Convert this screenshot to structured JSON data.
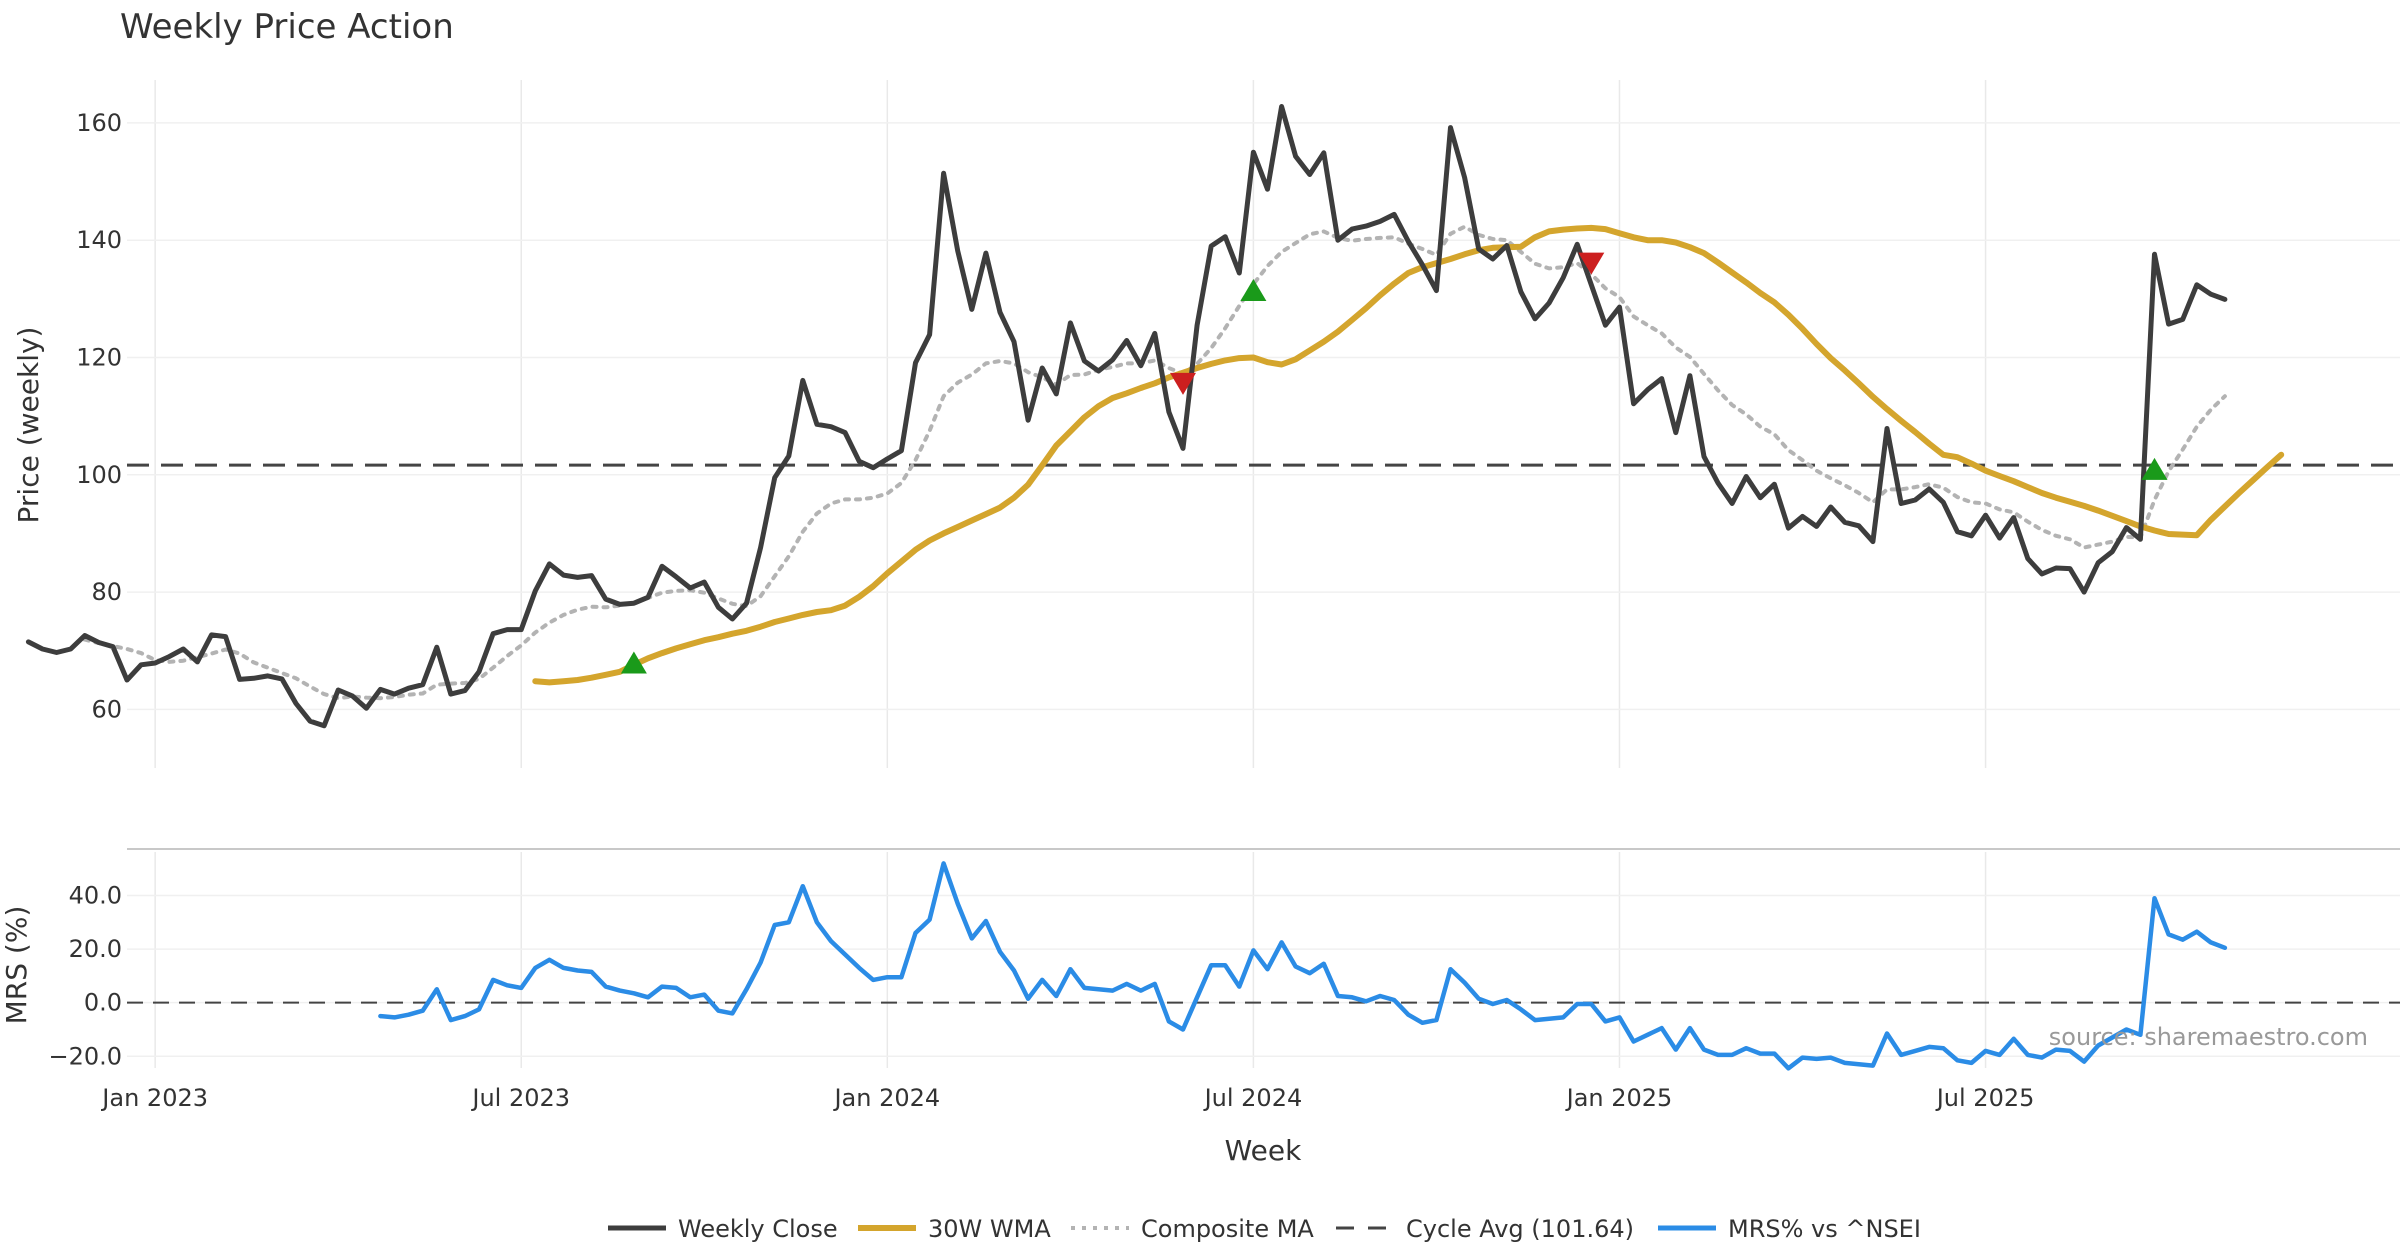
{
  "chart_data": {
    "type": "line",
    "title": "Weekly Price Action",
    "xlabel": "Week",
    "x_ticks": [
      "Jan 2023",
      "Jul 2023",
      "Jan 2024",
      "Jul 2024",
      "Jan 2025",
      "Jul 2025"
    ],
    "x_tick_weeks": [
      2,
      28,
      54,
      80,
      106,
      132
    ],
    "price_panel": {
      "ylabel": "Price (weekly)",
      "ylim": [
        50,
        168
      ],
      "yticks": [
        60,
        80,
        100,
        120,
        140,
        160
      ],
      "cycle_avg": 101.64
    },
    "mrs_panel": {
      "ylabel": "MRS (%)",
      "ylim": [
        -27,
        57
      ],
      "yticks": [
        40,
        20,
        0,
        -20
      ],
      "ytick_labels": [
        "40.0",
        "20.0",
        "0.0",
        "−20.0"
      ]
    },
    "series": [
      {
        "name": "Weekly Close",
        "color": "#3d3d3d",
        "start": -7,
        "values": [
          71.5,
          70.3,
          69.7,
          70.3,
          72.6,
          71.4,
          70.7,
          65.0,
          67.6,
          67.9,
          69.0,
          70.3,
          68.1,
          72.7,
          72.4,
          65.1,
          65.3,
          65.7,
          65.2,
          61.0,
          58.0,
          57.2,
          63.3,
          62.3,
          60.2,
          63.4,
          62.6,
          63.6,
          64.2,
          70.6,
          62.6,
          63.2,
          66.4,
          72.9,
          73.6,
          73.6,
          80.2,
          84.8,
          82.9,
          82.5,
          82.8,
          78.8,
          77.9,
          78.1,
          79.1,
          84.4,
          82.6,
          80.7,
          81.7,
          77.4,
          75.4,
          78.1,
          87.6,
          99.5,
          103.2,
          116.1,
          108.6,
          108.2,
          107.2,
          102.3,
          101.2,
          102.7,
          104.1,
          119.1,
          123.9,
          151.4,
          138.2,
          128.2,
          137.8,
          127.7,
          122.7,
          109.3,
          118.2,
          113.8,
          125.9,
          119.4,
          117.7,
          119.6,
          122.9,
          118.6,
          124.1,
          110.7,
          104.5,
          125.5,
          139.0,
          140.6,
          134.4,
          155.0,
          148.7,
          162.8,
          154.3,
          151.2,
          154.9,
          140.0,
          141.9,
          142.4,
          143.2,
          144.4,
          139.8,
          135.8,
          131.4,
          159.2,
          150.7,
          138.5,
          136.8,
          139.1,
          131.2,
          126.6,
          129.3,
          133.6,
          139.3,
          132.4,
          125.5,
          128.6,
          112.1,
          114.5,
          116.4,
          107.2,
          116.9,
          103.1,
          98.6,
          95.1,
          99.7,
          96.1,
          98.4,
          90.9,
          92.9,
          91.2,
          94.5,
          91.9,
          91.3,
          88.6,
          107.9,
          95.1,
          95.7,
          97.6,
          95.3,
          90.3,
          89.6,
          93.1,
          89.2,
          92.7,
          85.7,
          83.1,
          84.1,
          84.0,
          80.0,
          85.0,
          86.9,
          91.0,
          89.0,
          137.6,
          125.7,
          126.5,
          132.4,
          130.8,
          129.9
        ]
      },
      {
        "name": "30W WMA",
        "color": "#d4a52d",
        "start": 29,
        "values": [
          64.8,
          64.6,
          64.8,
          65.0,
          65.4,
          65.9,
          66.4,
          67.6,
          68.7,
          69.6,
          70.4,
          71.1,
          71.8,
          72.3,
          72.9,
          73.4,
          74.1,
          74.9,
          75.5,
          76.1,
          76.6,
          76.9,
          77.7,
          79.2,
          81.0,
          83.2,
          85.2,
          87.2,
          88.8,
          90.0,
          91.1,
          92.2,
          93.3,
          94.4,
          96.1,
          98.3,
          101.6,
          105.0,
          107.4,
          109.8,
          111.7,
          113.1,
          113.9,
          114.8,
          115.6,
          116.6,
          117.4,
          118.2,
          118.9,
          119.5,
          119.9,
          120.0,
          119.2,
          118.8,
          119.7,
          121.2,
          122.7,
          124.4,
          126.4,
          128.4,
          130.6,
          132.6,
          134.4,
          135.4,
          136.1,
          136.8,
          137.6,
          138.3,
          138.7,
          138.8,
          138.9,
          140.5,
          141.5,
          141.8,
          142.0,
          142.1,
          141.9,
          141.2,
          140.5,
          140.0,
          140.0,
          139.6,
          138.8,
          137.8,
          136.2,
          134.5,
          132.8,
          131.0,
          129.4,
          127.3,
          124.9,
          122.3,
          119.9,
          117.8,
          115.6,
          113.3,
          111.2,
          109.2,
          107.3,
          105.3,
          103.4,
          103.0,
          101.9,
          100.7,
          99.8,
          98.9,
          97.9,
          96.9,
          96.1,
          95.4,
          94.7,
          93.9,
          93.0,
          92.1,
          91.2,
          90.5,
          89.9,
          89.8,
          89.7,
          92.3,
          94.6,
          96.9,
          99.1,
          101.3,
          103.4
        ]
      },
      {
        "name": "Composite MA",
        "color": "#b3b3b3",
        "start": -7,
        "values": [
          null,
          null,
          null,
          null,
          71.9,
          71.3,
          70.8,
          70.3,
          69.6,
          68.4,
          68.1,
          68.3,
          68.9,
          69.5,
          70.2,
          69.5,
          68.0,
          67.1,
          66.2,
          65.3,
          63.9,
          62.6,
          61.9,
          62.2,
          62.0,
          61.9,
          62.1,
          62.5,
          62.7,
          64.2,
          64.4,
          64.5,
          65.2,
          67.1,
          69.1,
          70.9,
          73.1,
          74.8,
          76.1,
          77.0,
          77.5,
          77.4,
          77.7,
          78.2,
          79.0,
          79.9,
          80.2,
          80.3,
          79.9,
          78.9,
          78.0,
          77.6,
          79.3,
          82.7,
          86.1,
          90.3,
          93.4,
          95.1,
          95.8,
          95.8,
          96.1,
          96.8,
          98.6,
          102.5,
          107.5,
          113.4,
          115.7,
          117.1,
          119.0,
          119.4,
          119.0,
          117.5,
          116.6,
          115.4,
          117.0,
          117.1,
          117.9,
          118.4,
          119.0,
          119.0,
          119.5,
          118.2,
          117.2,
          118.9,
          121.6,
          125.0,
          128.8,
          132.5,
          135.6,
          138.0,
          139.5,
          141.0,
          141.5,
          140.4,
          139.9,
          140.2,
          140.4,
          140.5,
          139.4,
          138.5,
          137.5,
          141.1,
          142.3,
          140.9,
          140.2,
          140.0,
          138.0,
          136.0,
          135.2,
          135.4,
          136.1,
          134.2,
          131.8,
          130.3,
          127.0,
          125.5,
          124.1,
          121.7,
          120.1,
          117.2,
          114.4,
          111.9,
          110.3,
          108.2,
          106.9,
          104.2,
          102.5,
          100.7,
          99.4,
          98.2,
          96.9,
          95.3,
          97.5,
          97.5,
          97.9,
          98.4,
          97.8,
          96.2,
          95.3,
          95.1,
          94.1,
          93.6,
          92.0,
          90.6,
          89.6,
          89.0,
          87.6,
          88.1,
          88.6,
          89.4,
          89.3,
          95.7,
          100.6,
          104.3,
          108.2,
          111.1,
          113.4
        ]
      },
      {
        "name": "Cycle Avg (101.64)",
        "color": "#444444",
        "value": 101.64
      },
      {
        "name": "MRS% vs ^NSEI",
        "color": "#2b8ce6",
        "start": 18,
        "values": [
          -5.0,
          -5.5,
          -4.5,
          -3.0,
          5.0,
          -6.5,
          -5.0,
          -2.5,
          8.5,
          6.5,
          5.5,
          13.0,
          16.0,
          13.0,
          12.0,
          11.5,
          6.0,
          4.5,
          3.5,
          2.0,
          6.0,
          5.5,
          2.0,
          3.0,
          -3.0,
          -4.0,
          5.0,
          15.0,
          29.0,
          30.0,
          43.5,
          30.0,
          23.0,
          18.0,
          13.0,
          8.5,
          9.5,
          9.5,
          26.0,
          31.0,
          52.0,
          37.0,
          24.0,
          30.5,
          19.0,
          12.0,
          1.5,
          8.5,
          2.5,
          12.5,
          5.5,
          5.0,
          4.5,
          7.0,
          4.5,
          7.0,
          -7.0,
          -10.0,
          2.0,
          14.0,
          14.0,
          6.0,
          19.5,
          12.5,
          22.5,
          13.5,
          11.0,
          14.5,
          2.5,
          2.0,
          0.5,
          2.5,
          1.0,
          -4.5,
          -7.5,
          -6.5,
          12.5,
          7.5,
          1.5,
          -0.5,
          1.0,
          -2.5,
          -6.5,
          -6.0,
          -5.5,
          -0.5,
          -0.5,
          -7.0,
          -5.5,
          -14.5,
          -12.0,
          -9.5,
          -17.5,
          -9.5,
          -17.5,
          -19.5,
          -19.5,
          -17.0,
          -19.0,
          -19.0,
          -24.5,
          -20.5,
          -21.0,
          -20.5,
          -22.5,
          -23.0,
          -23.5,
          -11.5,
          -19.5,
          -18.0,
          -16.5,
          -17.0,
          -21.5,
          -22.5,
          -18.0,
          -19.5,
          -13.5,
          -19.5,
          -20.5,
          -17.5,
          -18.0,
          -22.0,
          -16.0,
          -13.0,
          -10.0,
          -12.0,
          39.0,
          25.5,
          23.5,
          26.5,
          22.5,
          20.5
        ]
      }
    ],
    "signals": [
      {
        "type": "buy",
        "week": 36,
        "price": 68.0
      },
      {
        "type": "sell",
        "week": 75,
        "price": 115.5
      },
      {
        "type": "buy",
        "week": 80,
        "price": 131.5
      },
      {
        "type": "sell",
        "week": 104,
        "price": 136.0
      },
      {
        "type": "buy",
        "week": 144,
        "price": 101.0
      }
    ],
    "legend": {
      "placement": "bottom-center",
      "items": [
        "Weekly Close",
        "30W WMA",
        "Composite MA",
        "Cycle Avg (101.64)",
        "MRS% vs ^NSEI"
      ]
    },
    "source": "source: sharemaestro.com",
    "colors": {
      "buy": "#1a9a1a",
      "sell": "#cc1f1f"
    }
  }
}
